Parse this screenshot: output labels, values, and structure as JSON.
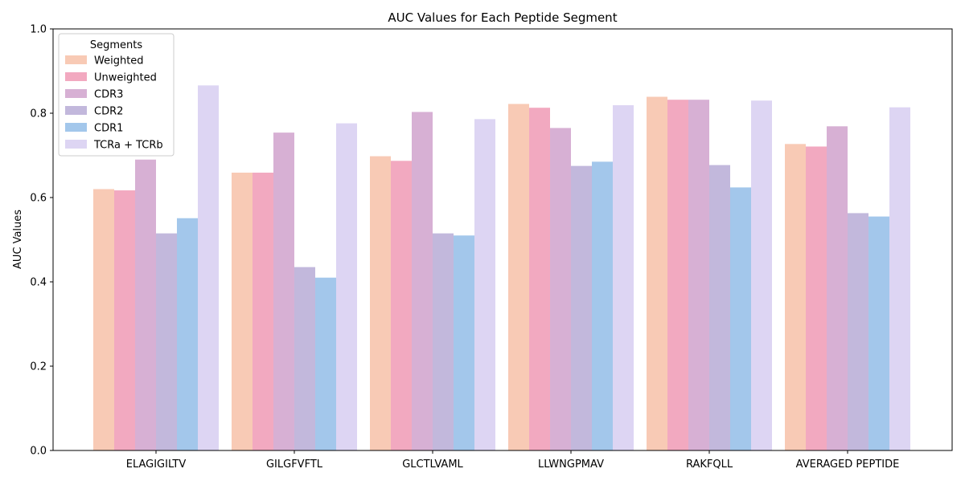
{
  "chart_data": {
    "type": "bar",
    "title": "AUC Values for Each Peptide Segment",
    "xlabel": "",
    "ylabel": "AUC Values",
    "ylim": [
      0,
      1.0
    ],
    "yticks": [
      "0.0",
      "0.2",
      "0.4",
      "0.6",
      "0.8",
      "1.0"
    ],
    "grid": false,
    "legend": {
      "title": "Segments",
      "placement": "top-left"
    },
    "categories": [
      "ELAGIGILTV",
      "GILGFVFTL",
      "GLCTLVAML",
      "LLWNGPMAV",
      "RAKFQLL",
      "AVERAGED PEPTIDE"
    ],
    "series": [
      {
        "name": "Weighted",
        "color": "#f8cab5",
        "values": [
          0.62,
          0.659,
          0.698,
          0.822,
          0.839,
          0.727
        ]
      },
      {
        "name": "Unweighted",
        "color": "#f2a9c0",
        "values": [
          0.617,
          0.659,
          0.687,
          0.813,
          0.832,
          0.721
        ]
      },
      {
        "name": "CDR3",
        "color": "#d7b0d4",
        "values": [
          0.69,
          0.754,
          0.803,
          0.765,
          0.832,
          0.769
        ]
      },
      {
        "name": "CDR2",
        "color": "#c2b8dc",
        "values": [
          0.515,
          0.435,
          0.515,
          0.675,
          0.677,
          0.563
        ]
      },
      {
        "name": "CDR1",
        "color": "#a3c7eb",
        "values": [
          0.551,
          0.41,
          0.51,
          0.685,
          0.624,
          0.555
        ]
      },
      {
        "name": "TCRa + TCRb",
        "color": "#ddd5f3",
        "values": [
          0.866,
          0.776,
          0.786,
          0.819,
          0.83,
          0.814
        ]
      }
    ]
  }
}
